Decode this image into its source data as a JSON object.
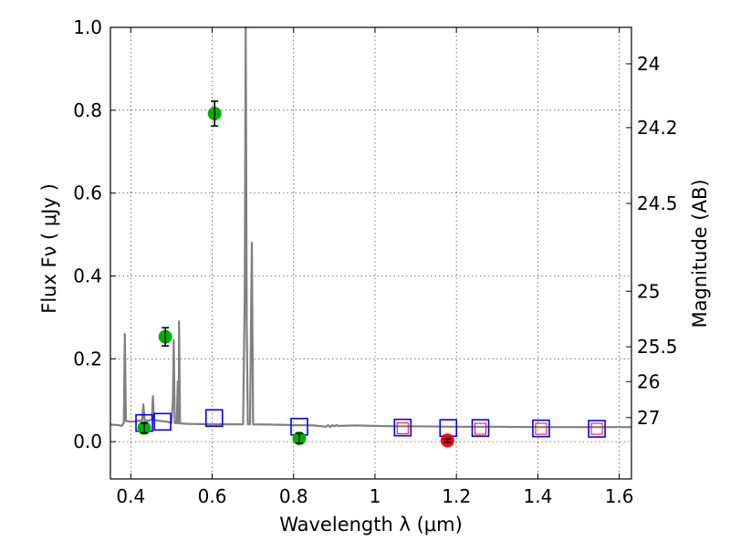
{
  "chart_data": {
    "type": "scatter",
    "xlabel": "Wavelength  λ (μm)",
    "ylabel": "Flux  Fν  ( μJy )",
    "y2label": "Magnitude (AB)",
    "xlim": [
      0.35,
      1.63
    ],
    "ylim": [
      -0.09,
      1.0
    ],
    "grid": true,
    "x_ticks": [
      {
        "value": 0.4,
        "label": "0.4"
      },
      {
        "value": 0.6,
        "label": "0.6"
      },
      {
        "value": 0.8,
        "label": "0.8"
      },
      {
        "value": 1.0,
        "label": "1"
      },
      {
        "value": 1.2,
        "label": "1.2"
      },
      {
        "value": 1.4,
        "label": "1.4"
      },
      {
        "value": 1.6,
        "label": "1.6"
      }
    ],
    "y_ticks": [
      {
        "value": 0.0,
        "label": "0.0"
      },
      {
        "value": 0.2,
        "label": "0.2"
      },
      {
        "value": 0.4,
        "label": "0.4"
      },
      {
        "value": 0.6,
        "label": "0.6"
      },
      {
        "value": 0.8,
        "label": "0.8"
      },
      {
        "value": 1.0,
        "label": "1.0"
      }
    ],
    "mag_ticks": [
      {
        "label": "24",
        "flux": 0.912
      },
      {
        "label": "24.2",
        "flux": 0.758
      },
      {
        "label": "24.5",
        "flux": 0.575
      },
      {
        "label": "25",
        "flux": 0.363
      },
      {
        "label": "25.5",
        "flux": 0.229
      },
      {
        "label": "26",
        "flux": 0.145
      },
      {
        "label": "27",
        "flux": 0.058
      }
    ],
    "series": [
      {
        "name": "model SED",
        "kind": "line",
        "color": "#808080",
        "points": [
          [
            0.35,
            0.041
          ],
          [
            0.37,
            0.04
          ],
          [
            0.378,
            0.038
          ],
          [
            0.383,
            0.045
          ],
          [
            0.3855,
            0.26
          ],
          [
            0.388,
            0.05
          ],
          [
            0.4,
            0.048
          ],
          [
            0.42,
            0.05
          ],
          [
            0.428,
            0.052
          ],
          [
            0.431,
            0.09
          ],
          [
            0.434,
            0.052
          ],
          [
            0.445,
            0.05
          ],
          [
            0.452,
            0.055
          ],
          [
            0.4545,
            0.11
          ],
          [
            0.457,
            0.052
          ],
          [
            0.47,
            0.05
          ],
          [
            0.49,
            0.048
          ],
          [
            0.5,
            0.045
          ],
          [
            0.5035,
            0.1
          ],
          [
            0.5055,
            0.245
          ],
          [
            0.508,
            0.045
          ],
          [
            0.513,
            0.044
          ],
          [
            0.5155,
            0.145
          ],
          [
            0.518,
            0.044
          ],
          [
            0.5185,
            0.29
          ],
          [
            0.521,
            0.044
          ],
          [
            0.54,
            0.043
          ],
          [
            0.6,
            0.042
          ],
          [
            0.66,
            0.042
          ],
          [
            0.676,
            0.042
          ],
          [
            0.68,
            0.35
          ],
          [
            0.6825,
            1.0
          ],
          [
            0.685,
            0.28
          ],
          [
            0.6875,
            0.042
          ],
          [
            0.693,
            0.042
          ],
          [
            0.6975,
            0.48
          ],
          [
            0.7005,
            0.042
          ],
          [
            0.75,
            0.041
          ],
          [
            0.8,
            0.04
          ],
          [
            0.85,
            0.039
          ],
          [
            0.88,
            0.036
          ],
          [
            0.885,
            0.04
          ],
          [
            0.89,
            0.035
          ],
          [
            0.895,
            0.04
          ],
          [
            0.9,
            0.037
          ],
          [
            0.905,
            0.04
          ],
          [
            0.91,
            0.038
          ],
          [
            0.95,
            0.039
          ],
          [
            1.0,
            0.038
          ],
          [
            1.05,
            0.037
          ],
          [
            1.1,
            0.037
          ],
          [
            1.2,
            0.036
          ],
          [
            1.3,
            0.036
          ],
          [
            1.4,
            0.035
          ],
          [
            1.5,
            0.035
          ],
          [
            1.63,
            0.035
          ]
        ]
      },
      {
        "name": "model photometry",
        "kind": "square",
        "color": "#0000ff",
        "points": [
          [
            0.433,
            0.045
          ],
          [
            0.478,
            0.048
          ],
          [
            0.605,
            0.057
          ],
          [
            0.814,
            0.036
          ],
          [
            1.068,
            0.034
          ],
          [
            1.18,
            0.033
          ],
          [
            1.259,
            0.033
          ],
          [
            1.408,
            0.032
          ],
          [
            1.545,
            0.031
          ]
        ]
      },
      {
        "name": "upper-limit photometry",
        "kind": "small-square",
        "color": "#ff0000",
        "points": [
          [
            1.068,
            0.032
          ],
          [
            1.259,
            0.031
          ],
          [
            1.408,
            0.031
          ],
          [
            1.545,
            0.031
          ]
        ]
      },
      {
        "name": "detections",
        "kind": "circle",
        "color": "#00b000",
        "points": [
          [
            0.433,
            0.033,
            0.012
          ],
          [
            0.485,
            0.253,
            0.022
          ],
          [
            0.606,
            0.792,
            0.03
          ],
          [
            0.814,
            0.008,
            0.012
          ]
        ]
      },
      {
        "name": "non-detection",
        "kind": "circle",
        "color": "#ff0000",
        "points": [
          [
            1.178,
            0.003,
            0.004
          ]
        ]
      }
    ]
  }
}
